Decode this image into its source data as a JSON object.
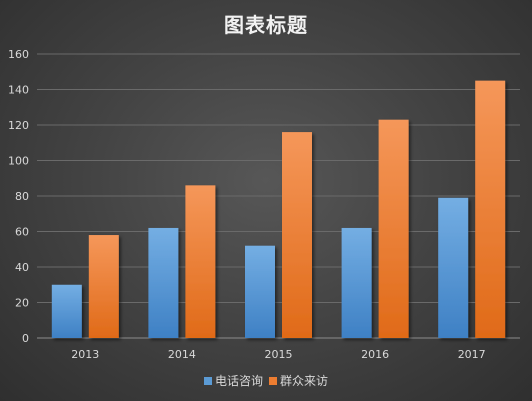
{
  "chart_data": {
    "type": "bar",
    "title": "图表标题",
    "categories": [
      "2013",
      "2014",
      "2015",
      "2016",
      "2017"
    ],
    "series": [
      {
        "name": "电话咨询",
        "values": [
          30,
          62,
          52,
          62,
          79
        ],
        "color": "#5b9bd5"
      },
      {
        "name": "群众来访",
        "values": [
          58,
          86,
          116,
          123,
          145
        ],
        "color": "#ed7d31"
      }
    ],
    "ylim": [
      0,
      160
    ],
    "yticks": [
      0,
      20,
      40,
      60,
      80,
      100,
      120,
      140,
      160
    ],
    "grid": true,
    "legend_position": "bottom",
    "background": "#404040"
  }
}
